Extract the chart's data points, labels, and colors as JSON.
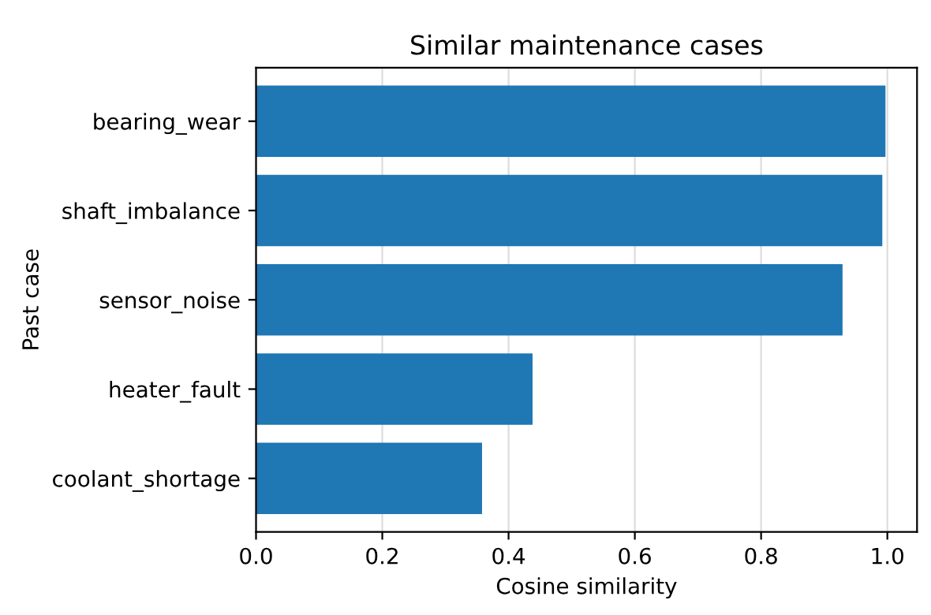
{
  "chart_data": {
    "type": "bar",
    "orientation": "horizontal",
    "title": "Similar maintenance cases",
    "xlabel": "Cosine similarity",
    "ylabel": "Past case",
    "categories": [
      "bearing_wear",
      "shaft_imbalance",
      "sensor_noise",
      "heater_fault",
      "coolant_shortage"
    ],
    "values": [
      0.997,
      0.992,
      0.929,
      0.438,
      0.358
    ],
    "color": "#1f77b4",
    "xlim": [
      0,
      1.047
    ],
    "xticks": [
      {
        "value": 0,
        "label": "0.0"
      },
      0.2,
      0.4,
      0.6,
      0.8,
      {
        "value": 1,
        "label": "1.0"
      }
    ],
    "grid": "x"
  }
}
